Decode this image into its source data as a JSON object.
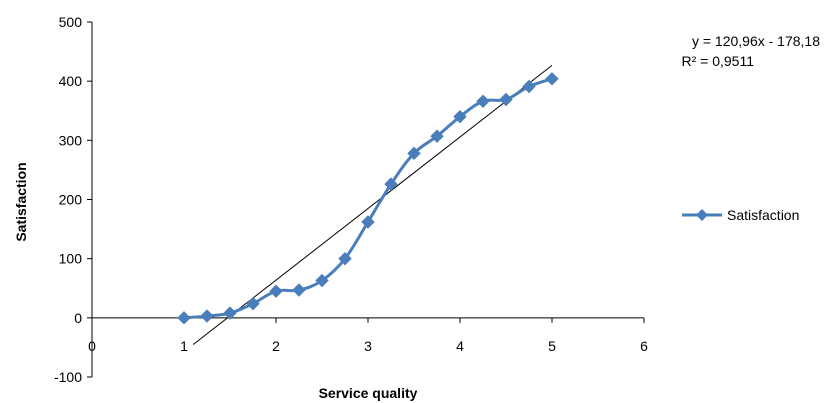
{
  "colors": {
    "series": "#4a7ebb",
    "marker_fill": "#4a7ebb",
    "axis": "#000000",
    "trendline": "#000000",
    "background": "#ffffff"
  },
  "chart_data": {
    "type": "scatter",
    "title": "",
    "xlabel": "Service quality",
    "ylabel": "Satisfaction",
    "xlim": [
      0,
      6
    ],
    "ylim": [
      -100,
      500
    ],
    "x_ticks": [
      "0",
      "1",
      "2",
      "3",
      "4",
      "5",
      "6"
    ],
    "y_ticks": [
      "-100",
      "0",
      "100",
      "200",
      "300",
      "400",
      "500"
    ],
    "grid": false,
    "legend_position": "right",
    "series": [
      {
        "name": "Satisfaction",
        "marker": "diamond",
        "line": "smooth",
        "points": [
          {
            "x": 1.0,
            "y": 0
          },
          {
            "x": 1.25,
            "y": 3
          },
          {
            "x": 1.5,
            "y": 8
          },
          {
            "x": 1.75,
            "y": 24
          },
          {
            "x": 2.0,
            "y": 45
          },
          {
            "x": 2.25,
            "y": 47
          },
          {
            "x": 2.5,
            "y": 63
          },
          {
            "x": 2.75,
            "y": 100
          },
          {
            "x": 3.0,
            "y": 162
          },
          {
            "x": 3.25,
            "y": 226
          },
          {
            "x": 3.5,
            "y": 278
          },
          {
            "x": 3.75,
            "y": 307
          },
          {
            "x": 4.0,
            "y": 340
          },
          {
            "x": 4.25,
            "y": 366
          },
          {
            "x": 4.5,
            "y": 369
          },
          {
            "x": 4.75,
            "y": 391
          },
          {
            "x": 5.0,
            "y": 404
          }
        ]
      }
    ],
    "trendline": {
      "type": "linear",
      "slope": 120.96,
      "intercept": -178.18,
      "x_range": [
        1.1,
        5.0
      ],
      "equation_text": "y = 120,96x - 178,18",
      "r2_text": "R² = 0,9511"
    }
  }
}
